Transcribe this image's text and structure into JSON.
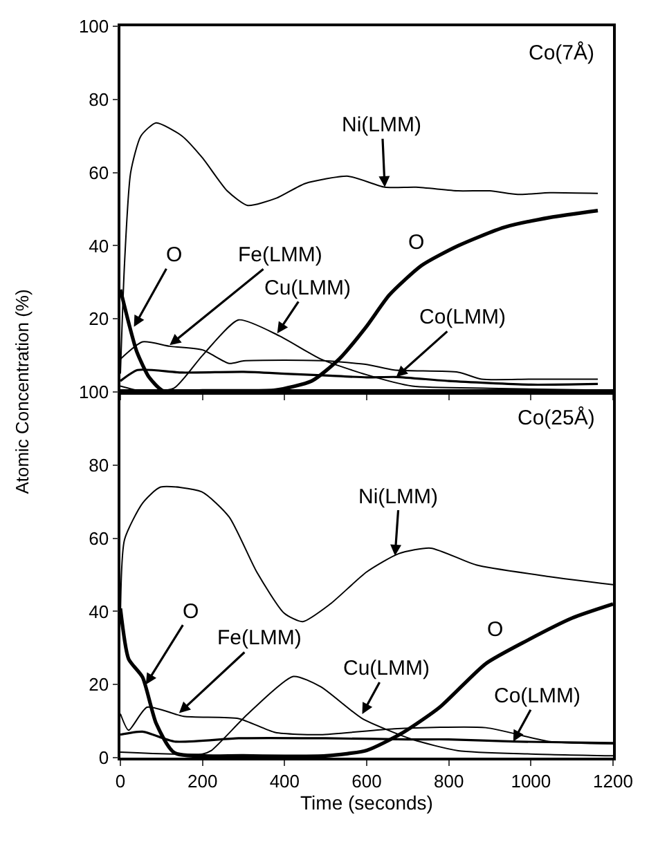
{
  "chart_data": [
    {
      "type": "line",
      "xlim": [
        0,
        1200
      ],
      "xticks": [
        {
          "value": 0,
          "label": null
        },
        {
          "value": 200,
          "label": null
        },
        {
          "value": 400,
          "label": null
        },
        {
          "value": 600,
          "label": null
        },
        {
          "value": 800,
          "label": null
        },
        {
          "value": 1000,
          "label": null
        },
        {
          "value": 1200,
          "label": null
        }
      ],
      "ylim": [
        0,
        100
      ],
      "yticks": [
        {
          "value": 0,
          "label": null
        },
        20,
        40,
        60,
        80,
        100
      ],
      "tick_labels": "y",
      "marker": "none",
      "line_style": "solid",
      "series": [
        {
          "color": "#000000",
          "x": [
            0,
            10,
            25,
            50,
            87,
            150,
            200,
            260,
            310,
            380,
            450,
            555,
            644,
            720,
            823,
            900,
            968,
            1046,
            1163
          ],
          "values": [
            5,
            35,
            60,
            70,
            73.6,
            70,
            64,
            55,
            51,
            53,
            57,
            59,
            56,
            56,
            55,
            55,
            54,
            54.5,
            54.3
          ]
        },
        {
          "color": "#000000",
          "x": [
            0,
            20,
            40,
            70,
            104,
            200,
            300,
            377,
            466,
            533,
            600,
            655,
            734,
            823,
            934,
            1046,
            1163
          ],
          "values": [
            28,
            19,
            11,
            4,
            0.3,
            0.3,
            0.3,
            0.5,
            3,
            9,
            18,
            26.5,
            34.6,
            40,
            45,
            47.7,
            49.6
          ]
        },
        {
          "color": "#000000",
          "x": [
            0,
            54,
            120,
            200,
            265,
            300,
            400,
            500,
            600,
            667,
            823,
            880,
            1000,
            1163
          ],
          "values": [
            9,
            13.7,
            12.5,
            11.5,
            7.8,
            8.5,
            8.7,
            8.5,
            7.5,
            6,
            5.4,
            3.5,
            3.5,
            3.5
          ]
        },
        {
          "color": "#000000",
          "x": [
            0,
            50,
            130,
            200,
            288,
            388,
            488,
            600,
            711,
            900,
            1163
          ],
          "values": [
            1.6,
            0.3,
            1,
            10,
            19.7,
            15.3,
            9,
            4.7,
            1.6,
            1,
            0.5
          ]
        },
        {
          "color": "#000000",
          "x": [
            0,
            42,
            150,
            300,
            400,
            500,
            600,
            672,
            800,
            1000,
            1163
          ],
          "values": [
            3,
            6,
            5.3,
            5.5,
            5,
            4.5,
            4,
            4.1,
            3,
            2,
            2.2
          ]
        }
      ],
      "annotations": [
        "Co(7Å)",
        {
          "text": "Ni(LMM)",
          "x": 644,
          "y": 56
        },
        {
          "text": "O",
          "x": 33,
          "y": 17.8
        },
        {
          "text": "Fe(LMM)",
          "x": 120,
          "y": 12.8
        },
        {
          "text": "Cu(LMM)",
          "x": 382,
          "y": 16
        },
        {
          "text": "Co(LMM)",
          "x": 672,
          "y": 4.1
        },
        "O"
      ]
    },
    {
      "type": "line",
      "xlabel": "Time (seconds)",
      "ylabel": "Atomic Concentration (%)",
      "xlim": [
        0,
        1200
      ],
      "xticks": [
        0,
        200,
        400,
        600,
        800,
        1000,
        1200
      ],
      "ylim": [
        0,
        100
      ],
      "yticks": [
        0,
        20,
        40,
        60,
        80,
        100
      ],
      "marker": "none",
      "line_style": "solid",
      "series": [
        {
          "color": "#000000",
          "x": [
            0,
            10,
            54,
            98,
            198,
            265,
            332,
            399,
            444,
            511,
            600,
            678,
            756,
            867,
            1046,
            1200
          ],
          "values": [
            38,
            59.6,
            69.6,
            74,
            72.7,
            65.8,
            50.8,
            39.5,
            37.2,
            42,
            50.8,
            55.8,
            57.3,
            52.7,
            49.5,
            47.3
          ]
        },
        {
          "color": "#000000",
          "x": [
            0,
            20,
            54,
            87,
            132,
            300,
            500,
            600,
            689,
            778,
            890,
            990,
            1101,
            1200
          ],
          "values": [
            40.8,
            27,
            22,
            9.4,
            1.3,
            0.5,
            0.5,
            2,
            6.9,
            13.8,
            25.7,
            32,
            38.2,
            42
          ]
        },
        {
          "color": "#000000",
          "x": [
            0,
            20,
            65,
            154,
            288,
            377,
            488,
            667,
            890,
            1046,
            1200
          ],
          "values": [
            12,
            7.5,
            13.8,
            11.3,
            10.7,
            6.9,
            6.3,
            7.9,
            8.2,
            4.4,
            3.8
          ]
        },
        {
          "color": "#000000",
          "x": [
            0,
            200,
            221,
            310,
            421,
            488,
            589,
            711,
            823,
            1000,
            1200
          ],
          "values": [
            1.5,
            1,
            1.9,
            11.9,
            22.2,
            19.4,
            10.7,
            5,
            1.9,
            1,
            0.5
          ]
        },
        {
          "color": "#000000",
          "x": [
            0,
            54,
            132,
            288,
            500,
            700,
            800,
            957,
            1200
          ],
          "values": [
            6.3,
            7.1,
            4.4,
            5.3,
            5.3,
            5,
            5,
            4.4,
            4
          ]
        }
      ],
      "annotations": [
        "Co(25Å)",
        {
          "text": "Ni(LMM)",
          "x": 669,
          "y": 55.2
        },
        {
          "text": "O",
          "x": 62,
          "y": 20
        },
        {
          "text": "Fe(LMM)",
          "x": 143,
          "y": 12.2
        },
        {
          "text": "Cu(LMM)",
          "x": 589,
          "y": 11.9
        },
        {
          "text": "Co(LMM)",
          "x": 957,
          "y": 4.4
        },
        "O"
      ]
    }
  ]
}
